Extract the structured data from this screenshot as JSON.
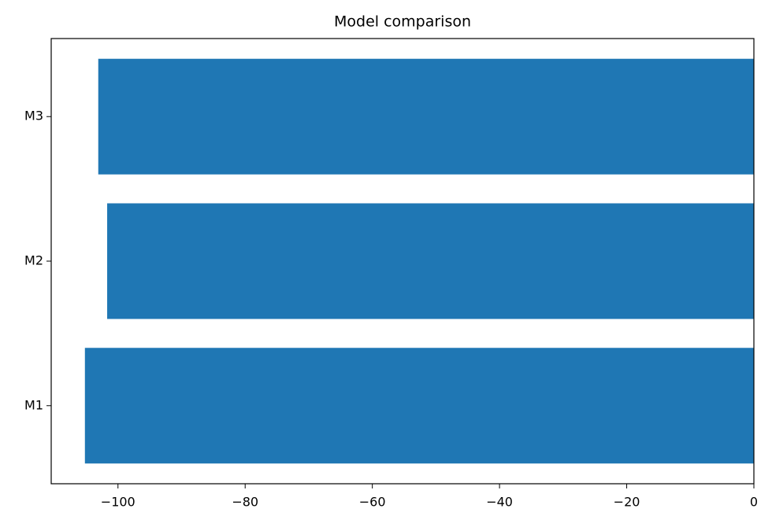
{
  "chart_data": {
    "type": "barh",
    "title": "Model comparison",
    "categories": [
      "M1",
      "M2",
      "M3"
    ],
    "values": [
      -105.2,
      -101.7,
      -103.1
    ],
    "color": "#1f77b4",
    "xlim": [
      -110.5,
      0
    ],
    "xticks": [
      {
        "value": -100,
        "label": "−100"
      },
      {
        "value": -80,
        "label": "−80"
      },
      {
        "value": -60,
        "label": "−60"
      },
      {
        "value": -40,
        "label": "−40"
      },
      {
        "value": -20,
        "label": "−20"
      },
      0
    ]
  }
}
